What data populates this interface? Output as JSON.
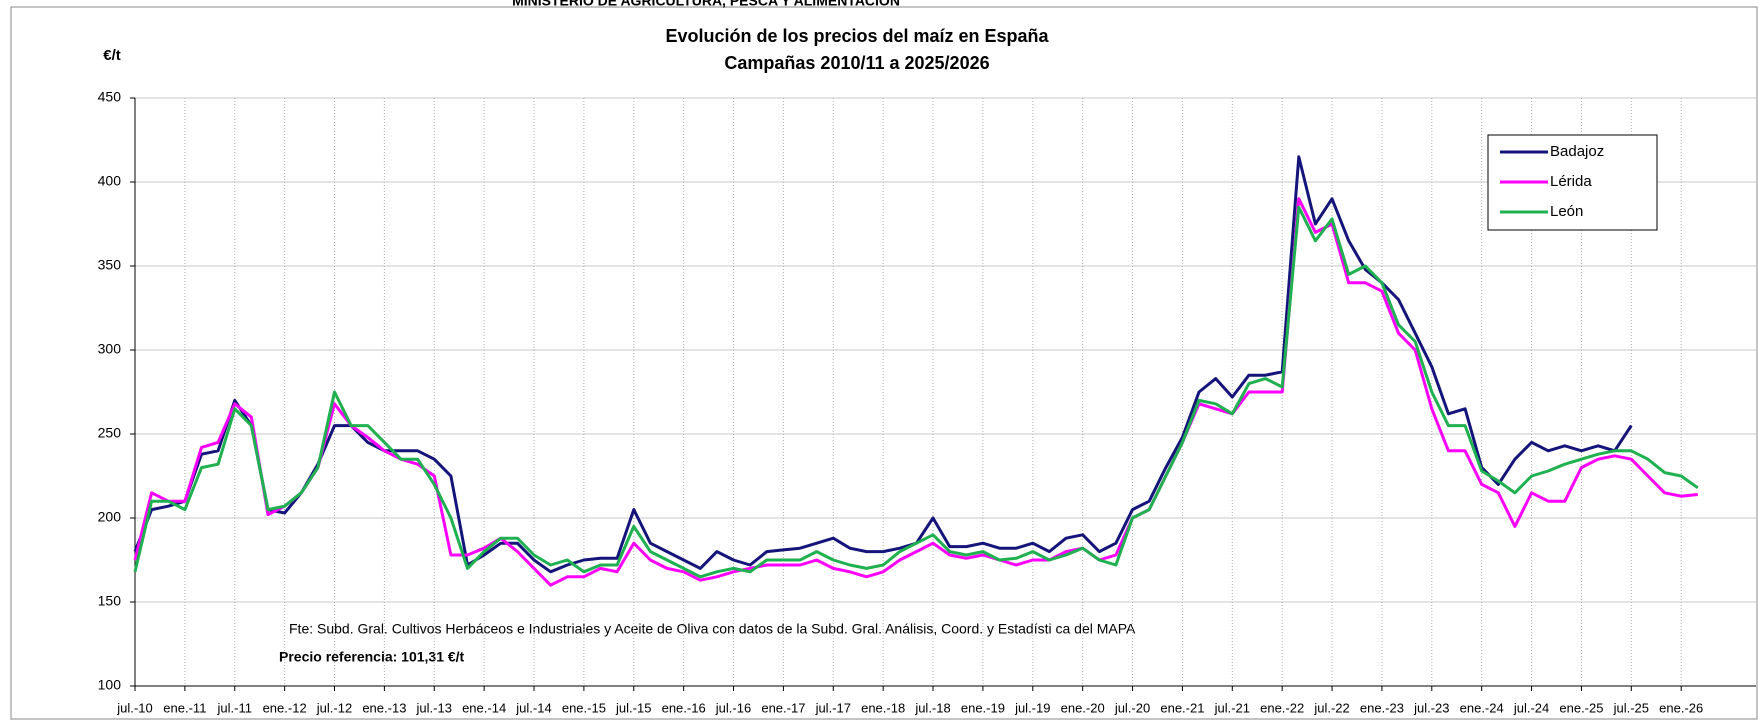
{
  "header": "MINISTERIO DE AGRICULTURA, PESCA Y ALIMENTACIÓN",
  "chart_data": {
    "type": "line",
    "title": "Evolución de los precios del maíz en España",
    "subtitle": "Campañas 2010/11 a 2025/2026",
    "y_label": "€/t",
    "annotations": [
      "Fte: Subd. Gral. Cultivos Herbáceos e Industriales y Aceite de Oliva con datos de la Subd. Gral. Análisis, Coord. y Estadísti ca del MAPA",
      "Precio referencia: 101,31 €/t"
    ],
    "x": [
      "2010-07",
      "2010-09",
      "2010-11",
      "2011-01",
      "2011-03",
      "2011-05",
      "2011-07",
      "2011-09",
      "2011-11",
      "2012-01",
      "2012-03",
      "2012-05",
      "2012-07",
      "2012-09",
      "2012-11",
      "2013-01",
      "2013-03",
      "2013-05",
      "2013-07",
      "2013-09",
      "2013-11",
      "2014-01",
      "2014-03",
      "2014-05",
      "2014-07",
      "2014-09",
      "2014-11",
      "2015-01",
      "2015-03",
      "2015-05",
      "2015-07",
      "2015-09",
      "2015-11",
      "2016-01",
      "2016-03",
      "2016-05",
      "2016-07",
      "2016-09",
      "2016-11",
      "2017-01",
      "2017-03",
      "2017-05",
      "2017-07",
      "2017-09",
      "2017-11",
      "2018-01",
      "2018-03",
      "2018-05",
      "2018-07",
      "2018-09",
      "2018-11",
      "2019-01",
      "2019-03",
      "2019-05",
      "2019-07",
      "2019-09",
      "2019-11",
      "2020-01",
      "2020-03",
      "2020-05",
      "2020-07",
      "2020-09",
      "2020-11",
      "2021-01",
      "2021-03",
      "2021-05",
      "2021-07",
      "2021-09",
      "2021-11",
      "2022-01",
      "2022-03",
      "2022-05",
      "2022-07",
      "2022-09",
      "2022-11",
      "2023-01",
      "2023-03",
      "2023-05",
      "2023-07",
      "2023-09",
      "2023-11",
      "2024-01",
      "2024-03",
      "2024-05",
      "2024-07",
      "2024-09",
      "2024-11",
      "2025-01",
      "2025-03",
      "2025-05",
      "2025-07",
      "2025-09",
      "2025-11",
      "2026-01",
      "2026-03"
    ],
    "series": [
      {
        "name": "Badajoz",
        "color": "#14147a",
        "values": [
          180,
          205,
          207,
          210,
          238,
          240,
          270,
          255,
          205,
          203,
          215,
          232,
          255,
          255,
          245,
          240,
          240,
          240,
          235,
          225,
          172,
          178,
          185,
          185,
          175,
          168,
          172,
          175,
          176,
          176,
          205,
          185,
          180,
          175,
          170,
          180,
          175,
          172,
          180,
          181,
          182,
          185,
          188,
          182,
          180,
          180,
          182,
          185,
          200,
          183,
          183,
          185,
          182,
          182,
          185,
          180,
          188,
          190,
          180,
          185,
          205,
          210,
          230,
          248,
          275,
          283,
          272,
          285,
          285,
          287,
          415,
          375,
          390,
          365,
          348,
          340,
          330,
          310,
          290,
          262,
          265,
          230,
          220,
          235,
          245,
          240,
          243,
          240,
          243,
          240,
          255,
          null,
          null,
          null,
          null
        ]
      },
      {
        "name": "Lérida",
        "color": "#ff00ff",
        "values": [
          175,
          215,
          210,
          210,
          242,
          245,
          268,
          260,
          202,
          207,
          215,
          230,
          268,
          255,
          248,
          240,
          235,
          232,
          225,
          178,
          178,
          182,
          188,
          180,
          170,
          160,
          165,
          165,
          170,
          168,
          185,
          175,
          170,
          168,
          163,
          165,
          168,
          170,
          172,
          172,
          172,
          175,
          170,
          168,
          165,
          168,
          175,
          180,
          185,
          178,
          176,
          178,
          175,
          172,
          175,
          175,
          180,
          182,
          175,
          178,
          200,
          205,
          225,
          245,
          268,
          265,
          262,
          275,
          275,
          275,
          390,
          370,
          375,
          340,
          340,
          335,
          310,
          300,
          265,
          240,
          240,
          220,
          215,
          195,
          215,
          210,
          210,
          230,
          235,
          237,
          235,
          225,
          215,
          213,
          214
        ]
      },
      {
        "name": "León",
        "color": "#1fb050",
        "values": [
          168,
          210,
          210,
          205,
          230,
          232,
          265,
          255,
          205,
          207,
          215,
          230,
          275,
          255,
          255,
          245,
          235,
          235,
          220,
          200,
          170,
          180,
          188,
          188,
          178,
          172,
          175,
          168,
          172,
          172,
          195,
          180,
          175,
          170,
          165,
          168,
          170,
          168,
          175,
          175,
          175,
          180,
          175,
          172,
          170,
          172,
          180,
          185,
          190,
          180,
          178,
          180,
          175,
          176,
          180,
          175,
          178,
          182,
          175,
          172,
          200,
          205,
          225,
          245,
          270,
          268,
          262,
          280,
          283,
          278,
          385,
          365,
          378,
          345,
          350,
          340,
          315,
          305,
          275,
          255,
          255,
          228,
          222,
          215,
          225,
          228,
          232,
          235,
          238,
          240,
          240,
          235,
          227,
          225,
          218
        ]
      }
    ],
    "xlim": [
      "2010-07",
      "2026-10"
    ],
    "xticks": [
      {
        "value": "2010-07",
        "label": "jul.-10"
      },
      {
        "value": "2011-01",
        "label": "ene.-11"
      },
      {
        "value": "2011-07",
        "label": "jul.-11"
      },
      {
        "value": "2012-01",
        "label": "ene.-12"
      },
      {
        "value": "2012-07",
        "label": "jul.-12"
      },
      {
        "value": "2013-01",
        "label": "ene.-13"
      },
      {
        "value": "2013-07",
        "label": "jul.-13"
      },
      {
        "value": "2014-01",
        "label": "ene.-14"
      },
      {
        "value": "2014-07",
        "label": "jul.-14"
      },
      {
        "value": "2015-01",
        "label": "ene.-15"
      },
      {
        "value": "2015-07",
        "label": "jul.-15"
      },
      {
        "value": "2016-01",
        "label": "ene.-16"
      },
      {
        "value": "2016-07",
        "label": "jul.-16"
      },
      {
        "value": "2017-01",
        "label": "ene.-17"
      },
      {
        "value": "2017-07",
        "label": "jul.-17"
      },
      {
        "value": "2018-01",
        "label": "ene.-18"
      },
      {
        "value": "2018-07",
        "label": "jul.-18"
      },
      {
        "value": "2019-01",
        "label": "ene.-19"
      },
      {
        "value": "2019-07",
        "label": "jul.-19"
      },
      {
        "value": "2020-01",
        "label": "ene.-20"
      },
      {
        "value": "2020-07",
        "label": "jul.-20"
      },
      {
        "value": "2021-01",
        "label": "ene.-21"
      },
      {
        "value": "2021-07",
        "label": "jul.-21"
      },
      {
        "value": "2022-01",
        "label": "ene.-22"
      },
      {
        "value": "2022-07",
        "label": "jul.-22"
      },
      {
        "value": "2023-01",
        "label": "ene.-23"
      },
      {
        "value": "2023-07",
        "label": "jul.-23"
      },
      {
        "value": "2024-01",
        "label": "ene.-24"
      },
      {
        "value": "2024-07",
        "label": "jul.-24"
      },
      {
        "value": "2025-01",
        "label": "ene.-25"
      },
      {
        "value": "2025-07",
        "label": "jul.-25"
      },
      {
        "value": "2026-01",
        "label": "ene.-26"
      }
    ],
    "ylim": [
      100,
      450
    ],
    "yticks": [
      100,
      150,
      200,
      250,
      300,
      350,
      400,
      450
    ],
    "grid": true,
    "legend": "upper right"
  }
}
